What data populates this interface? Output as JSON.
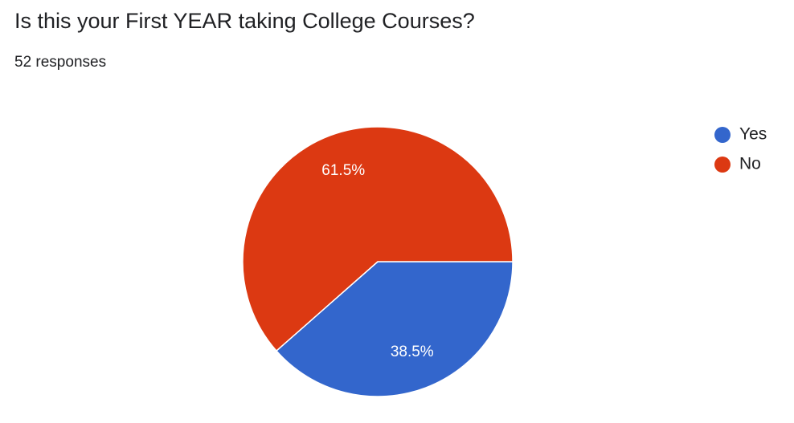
{
  "chart_data": {
    "type": "pie",
    "title": "Is this your First YEAR taking College Courses?",
    "subtitle": "52 responses",
    "categories": [
      "Yes",
      "No"
    ],
    "values": [
      38.5,
      61.5
    ],
    "value_labels": [
      "38.5%",
      "61.5%"
    ],
    "colors": [
      "#3366cc",
      "#dc3912"
    ],
    "legend": "right"
  }
}
